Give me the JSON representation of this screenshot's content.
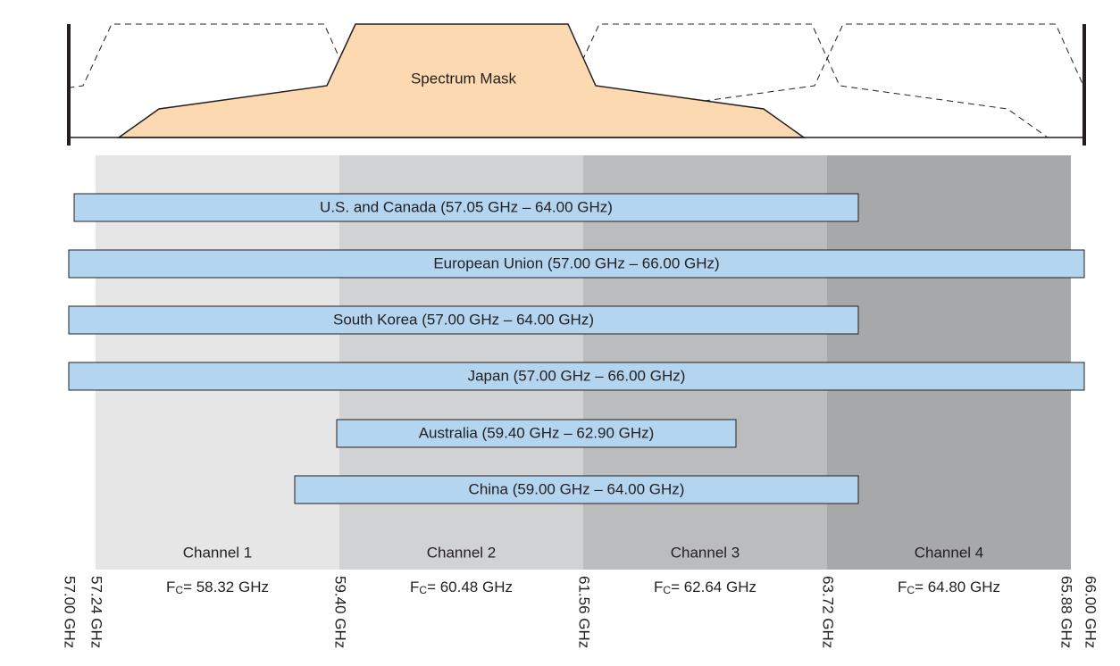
{
  "mask_label": "Spectrum Mask",
  "regions": [
    "U.S. and Canada (57.05 GHz – 64.00 GHz)",
    "European Union (57.00 GHz – 66.00 GHz)",
    "South Korea (57.00 GHz – 64.00 GHz)",
    "Japan (57.00 GHz – 66.00 GHz)",
    "Australia (59.40 GHz – 62.90 GHz)",
    "China (59.00 GHz – 64.00 GHz)"
  ],
  "channels": [
    {
      "name": "Channel 1",
      "fc_symbol": "F",
      "fc_subscript": "C",
      "fc_value": "= 58.32 GHz"
    },
    {
      "name": "Channel 2",
      "fc_symbol": "F",
      "fc_subscript": "C",
      "fc_value": "= 60.48 GHz"
    },
    {
      "name": "Channel 3",
      "fc_symbol": "F",
      "fc_subscript": "C",
      "fc_value": "= 62.64 GHz"
    },
    {
      "name": "Channel 4",
      "fc_symbol": "F",
      "fc_subscript": "C",
      "fc_value": "= 64.80 GHz"
    }
  ],
  "frequency_marks": [
    "57.00 GHz",
    "57.24 GHz",
    "59.40 GHz",
    "61.56 GHz",
    "63.72 GHz",
    "65.88 GHz",
    "66.00 GHz"
  ]
}
